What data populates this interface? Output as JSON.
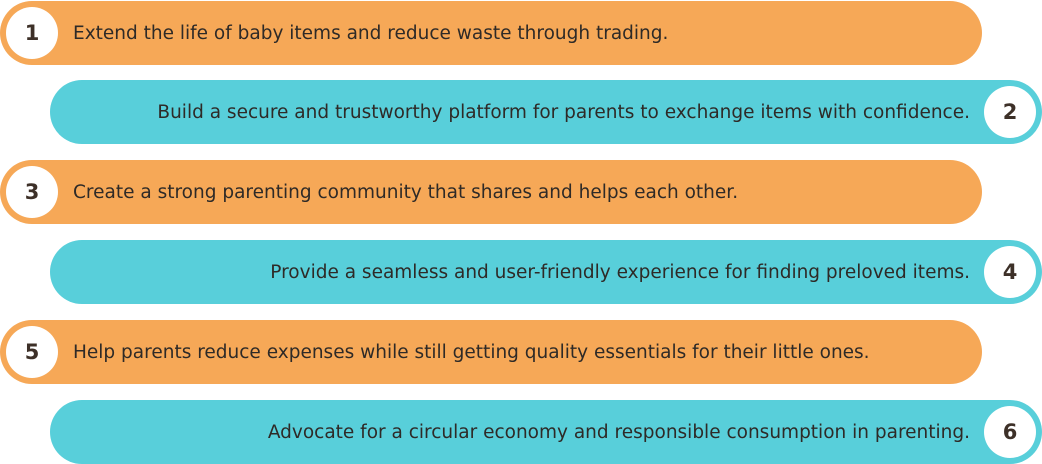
{
  "colors": {
    "orange": "#f6a857",
    "teal": "#58cfda",
    "badge": "#ffffff",
    "text": "#2e2a27"
  },
  "items": [
    {
      "number": "1",
      "text": "Extend the life of baby items and reduce waste through trading."
    },
    {
      "number": "2",
      "text": "Build a secure and trustworthy platform for parents to exchange items with confidence."
    },
    {
      "number": "3",
      "text": "Create a strong parenting community that shares and helps each other."
    },
    {
      "number": "4",
      "text": "Provide a seamless and user-friendly experience for finding preloved items."
    },
    {
      "number": "5",
      "text": "Help parents reduce expenses while still getting quality essentials for their little ones."
    },
    {
      "number": "6",
      "text": "Advocate for a circular economy and responsible consumption in parenting."
    }
  ]
}
